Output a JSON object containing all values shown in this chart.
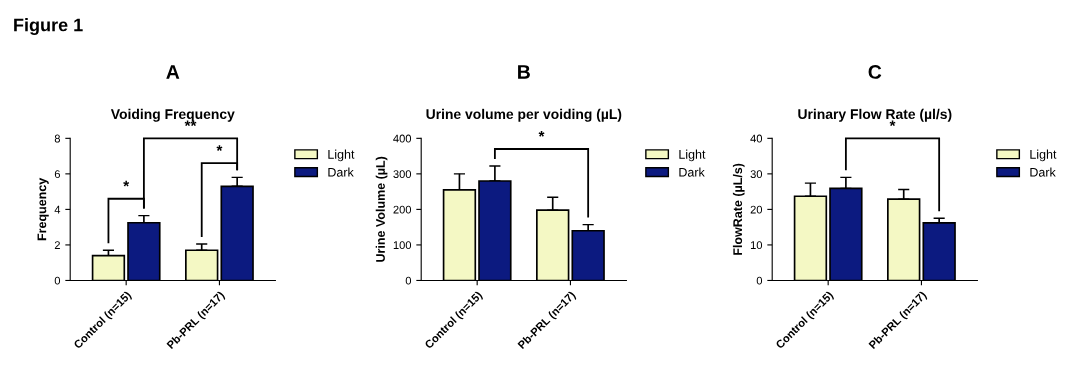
{
  "chart_data": [
    {
      "type": "bar",
      "title": "A",
      "subtitle": "Voiding Frequency",
      "ylabel": "Frequency",
      "categories": [
        "Control (n=15)",
        "Pb-PRL (n=17)"
      ],
      "series": [
        {
          "name": "Light",
          "color": "#f4f8c4",
          "values": [
            1.4,
            1.7
          ],
          "errors": [
            [
              1.4,
              1.7
            ],
            [
              1.7,
              2.05
            ]
          ]
        },
        {
          "name": "Dark",
          "color": "#0c1a80",
          "values": [
            3.25,
            5.3
          ],
          "errors": [
            [
              3.25,
              3.65
            ],
            [
              5.3,
              5.8
            ]
          ]
        }
      ],
      "ylim": [
        0,
        8
      ],
      "yticks": [
        0,
        2,
        4,
        6,
        8
      ],
      "grid": false,
      "legend": "top right",
      "annotations": [
        "*",
        "*",
        "**",
        "Figure 1"
      ]
    },
    {
      "type": "bar",
      "title": "B",
      "subtitle": "Urine volume per voiding (µL)",
      "ylabel": "Urine Volume (µL)",
      "categories": [
        "Control (n=15)",
        "Pb-PRL (n=17)"
      ],
      "series": [
        {
          "name": "Light",
          "color": "#f4f8c4",
          "values": [
            255,
            198
          ],
          "errors": [
            [
              255,
              300
            ],
            [
              198,
              234
            ]
          ]
        },
        {
          "name": "Dark",
          "color": "#0c1a80",
          "values": [
            280,
            140
          ],
          "errors": [
            [
              280,
              322
            ],
            [
              140,
              157
            ]
          ]
        }
      ],
      "ylim": [
        0,
        400
      ],
      "yticks": [
        0,
        100,
        200,
        300,
        400
      ],
      "grid": false,
      "legend": "top right",
      "annotations": [
        "*"
      ]
    },
    {
      "type": "bar",
      "title": "C",
      "subtitle": "Urinary Flow Rate (µl/s)",
      "ylabel": "FlowRate (µL/s)",
      "categories": [
        "Control (n=15)",
        "Pb-PRL (n=17)"
      ],
      "series": [
        {
          "name": "Light",
          "color": "#f4f8c4",
          "values": [
            23.7,
            22.9
          ],
          "errors": [
            [
              23.7,
              27.4
            ],
            [
              22.9,
              25.6
            ]
          ]
        },
        {
          "name": "Dark",
          "color": "#0c1a80",
          "values": [
            25.9,
            16.2
          ],
          "errors": [
            [
              25.9,
              29
            ],
            [
              16.2,
              17.5
            ]
          ]
        }
      ],
      "ylim": [
        0,
        40
      ],
      "yticks": [
        0,
        10,
        20,
        30,
        40
      ],
      "grid": false,
      "legend": "top right",
      "annotations": [
        "*"
      ]
    }
  ]
}
